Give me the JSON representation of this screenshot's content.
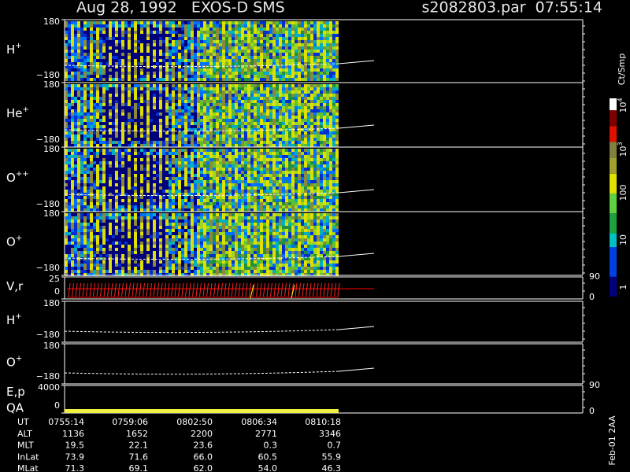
{
  "header": {
    "title": "Aug 28, 1992   EXOS-D SMS",
    "file": "s2082803.par  07:55:14"
  },
  "panels": [
    {
      "label": "H",
      "sup": "+",
      "top": "180",
      "bottom": "−180"
    },
    {
      "label": "He",
      "sup": "+",
      "top": "180",
      "bottom": "−180"
    },
    {
      "label": "O",
      "sup": "++",
      "top": "180",
      "bottom": "−180"
    },
    {
      "label": "O",
      "sup": "+",
      "top": "180",
      "bottom": "−180"
    },
    {
      "label": "V,r",
      "top": "25",
      "bottom": "0",
      "right_top": "90",
      "right_bottom": "0"
    },
    {
      "label": "H",
      "sup": "+",
      "top": "180",
      "bottom": "−180"
    },
    {
      "label": "O",
      "sup": "+",
      "top": "180",
      "bottom": "−180"
    },
    {
      "label": "E,p",
      "label2": "QA",
      "top": "4000",
      "bottom": "0",
      "right_top": "90",
      "right_bottom": "0"
    }
  ],
  "colorbar": {
    "unit": "Ct/Smp",
    "labels": [
      {
        "base": "10",
        "exp": "4"
      },
      {
        "base": "10",
        "exp": "3"
      },
      {
        "base": "100"
      },
      {
        "base": "10"
      },
      {
        "base": "1"
      }
    ]
  },
  "table": {
    "rows": [
      [
        "UT",
        "0755:14",
        "0759:06",
        "0802:50",
        "0806:34",
        "0810:18"
      ],
      [
        "ALT",
        "1136",
        "1652",
        "2200",
        "2771",
        "3346"
      ],
      [
        "MLT",
        "19.5",
        "22.1",
        "23.6",
        "0.3",
        "0.7"
      ],
      [
        "InLat",
        "73.9",
        "71.6",
        "66.0",
        "60.5",
        "55.9"
      ],
      [
        "MLat",
        "71.3",
        "69.1",
        "62.0",
        "54.0",
        "46.3"
      ]
    ]
  },
  "footer_note": "Feb-01 2AA"
}
